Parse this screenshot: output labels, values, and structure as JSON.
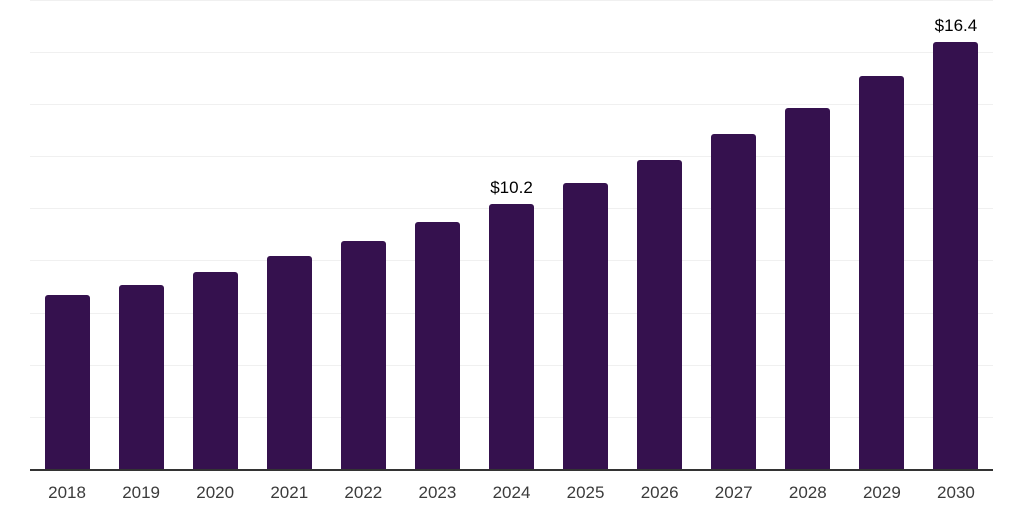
{
  "chart_data": {
    "type": "bar",
    "title": "",
    "xlabel": "",
    "ylabel": "",
    "categories": [
      "2018",
      "2019",
      "2020",
      "2021",
      "2022",
      "2023",
      "2024",
      "2025",
      "2026",
      "2027",
      "2028",
      "2029",
      "2030"
    ],
    "values": [
      6.7,
      7.1,
      7.6,
      8.2,
      8.8,
      9.5,
      10.2,
      11.0,
      11.9,
      12.9,
      13.9,
      15.1,
      16.4
    ],
    "data_labels": [
      "",
      "",
      "",
      "",
      "",
      "",
      "$10.2",
      "",
      "",
      "",
      "",
      "",
      "$16.4"
    ],
    "ylim": [
      0,
      18
    ],
    "gridline_interval": 2,
    "grid": "horizontal-only",
    "y_tick_labels_visible": false,
    "legend_position": "none",
    "colors": {
      "bar": "#35114E",
      "gridline": "#f0f0f0",
      "axis_line": "#333333",
      "tick_label": "#3b3b3b",
      "data_label": "#000000",
      "background": "#ffffff"
    }
  }
}
